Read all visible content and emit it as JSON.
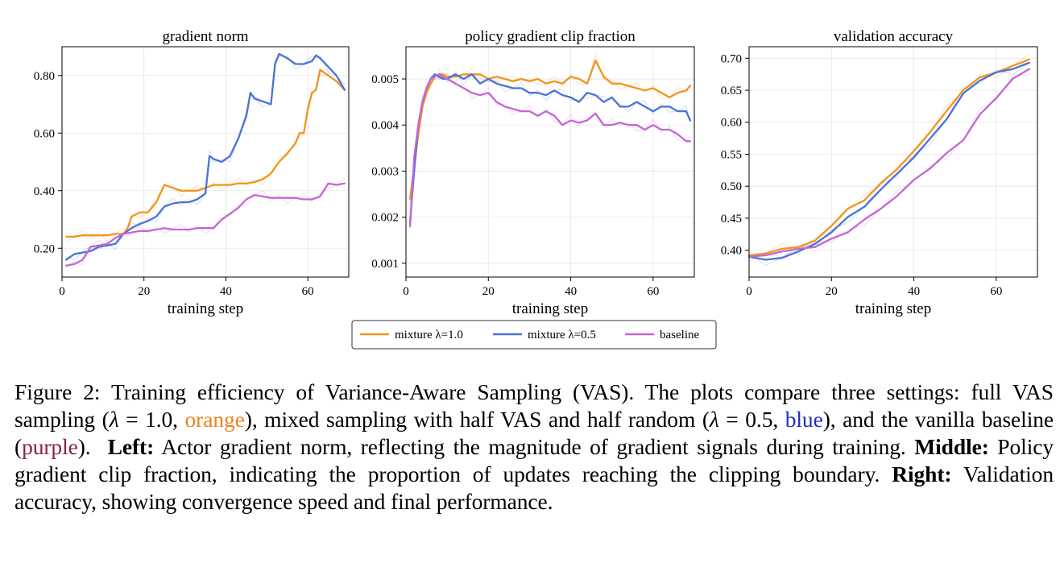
{
  "legend": {
    "entries": [
      {
        "label": "mixture λ=1.0",
        "color": "#f0951e"
      },
      {
        "label": "mixture λ=0.5",
        "color": "#4a73d4"
      },
      {
        "label": "baseline",
        "color": "#c566d4"
      }
    ]
  },
  "chart_data": [
    {
      "type": "line",
      "title": "gradient norm",
      "xlabel": "training step",
      "ylabel": "",
      "xlim": [
        0,
        70
      ],
      "ylim": [
        0.1,
        0.9
      ],
      "xticks": [
        0,
        20,
        40,
        60
      ],
      "yticks": [
        0.2,
        0.4,
        0.6,
        0.8
      ],
      "xtick_labels": [
        "0",
        "20",
        "40",
        "60"
      ],
      "ytick_labels": [
        "0.20",
        "0.40",
        "0.60",
        "0.80"
      ],
      "grid": true,
      "series": [
        {
          "name": "mixture λ=1.0",
          "x": [
            1,
            3,
            5,
            7,
            9,
            11,
            13,
            15,
            16,
            17,
            19,
            21,
            23,
            25,
            27,
            29,
            31,
            33,
            35,
            37,
            39,
            41,
            43,
            45,
            47,
            49,
            51,
            53,
            55,
            57,
            58,
            59,
            60,
            61,
            62,
            63,
            65,
            67,
            69
          ],
          "y": [
            0.24,
            0.24,
            0.245,
            0.245,
            0.245,
            0.245,
            0.25,
            0.25,
            0.27,
            0.31,
            0.325,
            0.325,
            0.36,
            0.42,
            0.41,
            0.4,
            0.4,
            0.4,
            0.41,
            0.42,
            0.42,
            0.42,
            0.425,
            0.425,
            0.43,
            0.44,
            0.46,
            0.5,
            0.53,
            0.565,
            0.6,
            0.6,
            0.68,
            0.74,
            0.75,
            0.82,
            0.8,
            0.78,
            0.75
          ]
        },
        {
          "name": "mixture λ=0.5",
          "x": [
            1,
            3,
            5,
            7,
            9,
            11,
            13,
            15,
            17,
            19,
            21,
            23,
            25,
            27,
            29,
            31,
            33,
            35,
            36,
            37,
            39,
            41,
            43,
            45,
            46,
            47,
            49,
            51,
            52,
            53,
            55,
            57,
            59,
            61,
            62,
            63,
            65,
            67,
            69
          ],
          "y": [
            0.16,
            0.18,
            0.185,
            0.19,
            0.205,
            0.21,
            0.215,
            0.25,
            0.27,
            0.285,
            0.295,
            0.31,
            0.345,
            0.355,
            0.36,
            0.36,
            0.37,
            0.39,
            0.52,
            0.51,
            0.5,
            0.52,
            0.58,
            0.66,
            0.74,
            0.72,
            0.71,
            0.7,
            0.84,
            0.875,
            0.86,
            0.84,
            0.84,
            0.85,
            0.87,
            0.86,
            0.83,
            0.8,
            0.75
          ]
        },
        {
          "name": "baseline",
          "x": [
            1,
            3,
            5,
            7,
            9,
            11,
            13,
            15,
            17,
            19,
            21,
            23,
            25,
            27,
            29,
            31,
            33,
            35,
            37,
            39,
            41,
            43,
            45,
            47,
            49,
            51,
            53,
            55,
            57,
            59,
            61,
            63,
            65,
            67,
            69
          ],
          "y": [
            0.14,
            0.145,
            0.16,
            0.205,
            0.21,
            0.215,
            0.235,
            0.25,
            0.255,
            0.26,
            0.26,
            0.265,
            0.27,
            0.265,
            0.265,
            0.265,
            0.27,
            0.27,
            0.27,
            0.3,
            0.32,
            0.34,
            0.37,
            0.385,
            0.38,
            0.375,
            0.375,
            0.375,
            0.375,
            0.37,
            0.37,
            0.38,
            0.425,
            0.42,
            0.425
          ]
        }
      ]
    },
    {
      "type": "line",
      "title": "policy gradient clip fraction",
      "xlabel": "training step",
      "ylabel": "",
      "xlim": [
        0,
        70
      ],
      "ylim": [
        0.0007,
        0.0057
      ],
      "xticks": [
        0,
        20,
        40,
        60
      ],
      "yticks": [
        0.001,
        0.002,
        0.003,
        0.004,
        0.005
      ],
      "xtick_labels": [
        "0",
        "20",
        "40",
        "60"
      ],
      "ytick_labels": [
        "0.001",
        "0.002",
        "0.003",
        "0.004",
        "0.005"
      ],
      "grid": true,
      "series": [
        {
          "name": "mixture λ=1.0",
          "x": [
            1,
            2,
            3,
            4,
            5,
            6,
            7,
            8,
            9,
            10,
            12,
            14,
            16,
            18,
            20,
            22,
            24,
            26,
            28,
            30,
            32,
            34,
            36,
            38,
            40,
            42,
            44,
            46,
            48,
            50,
            52,
            54,
            56,
            58,
            60,
            62,
            64,
            66,
            68,
            69
          ],
          "y": [
            0.0024,
            0.0031,
            0.0038,
            0.0044,
            0.0047,
            0.0049,
            0.00505,
            0.0051,
            0.0051,
            0.00505,
            0.00505,
            0.0051,
            0.0051,
            0.0051,
            0.005,
            0.00505,
            0.005,
            0.00495,
            0.005,
            0.00495,
            0.005,
            0.0049,
            0.00495,
            0.0049,
            0.00505,
            0.005,
            0.0049,
            0.0054,
            0.00505,
            0.0049,
            0.0049,
            0.00485,
            0.0048,
            0.00475,
            0.0048,
            0.0047,
            0.0046,
            0.0047,
            0.00475,
            0.00485
          ]
        },
        {
          "name": "mixture λ=0.5",
          "x": [
            1,
            2,
            3,
            4,
            5,
            6,
            7,
            8,
            9,
            10,
            12,
            14,
            16,
            18,
            20,
            22,
            24,
            26,
            28,
            30,
            32,
            34,
            36,
            38,
            40,
            42,
            44,
            46,
            48,
            50,
            52,
            54,
            56,
            58,
            60,
            62,
            64,
            66,
            68,
            69
          ],
          "y": [
            0.0019,
            0.003,
            0.004,
            0.0045,
            0.0048,
            0.005,
            0.0051,
            0.00505,
            0.005,
            0.005,
            0.0051,
            0.005,
            0.0051,
            0.0049,
            0.005,
            0.0049,
            0.00485,
            0.0048,
            0.0048,
            0.0047,
            0.0047,
            0.00465,
            0.00475,
            0.00465,
            0.0046,
            0.0045,
            0.0047,
            0.00465,
            0.0045,
            0.0046,
            0.0044,
            0.0044,
            0.0045,
            0.0044,
            0.0043,
            0.0044,
            0.0044,
            0.0043,
            0.0043,
            0.0041
          ]
        },
        {
          "name": "baseline",
          "x": [
            1,
            2,
            3,
            4,
            5,
            6,
            7,
            8,
            9,
            10,
            12,
            14,
            16,
            18,
            20,
            22,
            24,
            26,
            28,
            30,
            32,
            34,
            36,
            38,
            40,
            42,
            44,
            46,
            48,
            50,
            52,
            54,
            56,
            58,
            60,
            62,
            64,
            66,
            68,
            69
          ],
          "y": [
            0.0018,
            0.0033,
            0.004,
            0.0045,
            0.0048,
            0.005,
            0.00505,
            0.0051,
            0.00505,
            0.005,
            0.0049,
            0.0048,
            0.0047,
            0.00465,
            0.0047,
            0.0045,
            0.0044,
            0.00435,
            0.0043,
            0.0043,
            0.0042,
            0.0043,
            0.0042,
            0.004,
            0.0041,
            0.00405,
            0.0041,
            0.00425,
            0.004,
            0.004,
            0.00405,
            0.004,
            0.004,
            0.0039,
            0.004,
            0.0039,
            0.0039,
            0.0038,
            0.00365,
            0.00365
          ]
        }
      ]
    },
    {
      "type": "line",
      "title": "validation accuracy",
      "xlabel": "training step",
      "ylabel": "",
      "xlim": [
        0,
        70
      ],
      "ylim": [
        0.358,
        0.718
      ],
      "xticks": [
        0,
        20,
        40,
        60
      ],
      "yticks": [
        0.4,
        0.45,
        0.5,
        0.55,
        0.6,
        0.65,
        0.7
      ],
      "xtick_labels": [
        "0",
        "20",
        "40",
        "60"
      ],
      "ytick_labels": [
        "0.40",
        "0.45",
        "0.50",
        "0.55",
        "0.60",
        "0.65",
        "0.70"
      ],
      "grid": true,
      "series": [
        {
          "name": "mixture λ=1.0",
          "x": [
            0,
            4,
            8,
            12,
            16,
            20,
            24,
            28,
            32,
            36,
            40,
            44,
            48,
            52,
            56,
            60,
            64,
            68
          ],
          "y": [
            0.392,
            0.395,
            0.402,
            0.405,
            0.415,
            0.438,
            0.465,
            0.478,
            0.505,
            0.527,
            0.555,
            0.585,
            0.618,
            0.65,
            0.67,
            0.678,
            0.688,
            0.698
          ]
        },
        {
          "name": "mixture λ=0.5",
          "x": [
            0,
            4,
            8,
            12,
            16,
            20,
            24,
            28,
            32,
            36,
            40,
            44,
            48,
            52,
            56,
            60,
            64,
            68
          ],
          "y": [
            0.39,
            0.385,
            0.388,
            0.398,
            0.41,
            0.428,
            0.452,
            0.468,
            0.495,
            0.52,
            0.545,
            0.575,
            0.605,
            0.645,
            0.665,
            0.678,
            0.683,
            0.693
          ]
        },
        {
          "name": "baseline",
          "x": [
            0,
            4,
            8,
            12,
            16,
            20,
            24,
            28,
            32,
            36,
            40,
            44,
            48,
            52,
            56,
            60,
            64,
            68
          ],
          "y": [
            0.39,
            0.392,
            0.398,
            0.402,
            0.405,
            0.418,
            0.428,
            0.448,
            0.465,
            0.485,
            0.51,
            0.528,
            0.552,
            0.572,
            0.612,
            0.638,
            0.668,
            0.683
          ]
        }
      ]
    }
  ],
  "caption": {
    "lead": "Figure 2: Training efficiency of Variance-Aware Sampling (VAS). The plots compare three settings: full VAS sampling (",
    "lambda_sym": "λ",
    "eq1": " = 1.0, ",
    "orange_word": "orange",
    "mid1": "), mixed sampling with half VAS and half random (",
    "eq2": " = 0.5,",
    "blue_word": "blue",
    "mid2": "), and the vanilla baseline (",
    "purple_word": "purple",
    "mid3": ").",
    "left_label": "Left:",
    "left_text": " Actor gradient norm, reflecting the magnitude of gradient signals during training.",
    "middle_label": "Middle:",
    "middle_text": " Policy gradient clip fraction, indicating the proportion of updates reaching the clipping boundary.",
    "right_label": "Right:",
    "right_text": " Validation accuracy, showing convergence speed and final performance."
  }
}
